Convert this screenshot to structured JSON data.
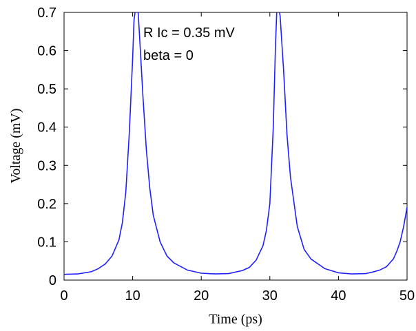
{
  "chart_data": {
    "type": "line",
    "title": "",
    "xlabel": "Time (ps)",
    "ylabel": "Voltage (mV)",
    "xlim": [
      0,
      50
    ],
    "ylim": [
      0,
      0.7
    ],
    "xticks": [
      0,
      10,
      20,
      30,
      40,
      50
    ],
    "yticks": [
      0,
      0.1,
      0.2,
      0.3,
      0.4,
      0.5,
      0.6,
      0.7
    ],
    "xtick_labels": [
      "0",
      "10",
      "20",
      "30",
      "40",
      "50"
    ],
    "ytick_labels": [
      "0",
      "0.1",
      "0.2",
      "0.3",
      "0.4",
      "0.5",
      "0.6",
      "0.7"
    ],
    "grid": false,
    "line_color": "#1f1fff",
    "annotations": [
      "R Ic = 0.35 mV",
      "beta = 0"
    ],
    "series": [
      {
        "x": [
          0,
          2,
          4,
          5,
          6,
          7,
          8,
          8.5,
          9,
          9.5,
          10,
          10.2,
          10.5,
          10.8,
          11,
          11.5,
          12,
          12.5,
          13,
          14,
          15,
          16,
          18,
          20,
          22,
          24,
          26,
          27,
          28,
          29,
          29.5,
          30,
          30.5,
          30.8,
          31,
          31.2,
          31.5,
          32,
          32.5,
          33,
          34,
          35,
          36,
          38,
          40,
          42,
          44,
          45,
          46,
          47,
          48,
          48.5,
          49,
          49.5,
          50
        ],
        "y": [
          0.015,
          0.016,
          0.022,
          0.03,
          0.042,
          0.063,
          0.105,
          0.15,
          0.23,
          0.38,
          0.58,
          0.68,
          0.72,
          0.7,
          0.64,
          0.48,
          0.34,
          0.24,
          0.17,
          0.1,
          0.063,
          0.045,
          0.026,
          0.018,
          0.016,
          0.017,
          0.025,
          0.033,
          0.052,
          0.09,
          0.13,
          0.2,
          0.4,
          0.6,
          0.7,
          0.72,
          0.69,
          0.55,
          0.38,
          0.27,
          0.14,
          0.08,
          0.055,
          0.03,
          0.019,
          0.016,
          0.017,
          0.021,
          0.026,
          0.035,
          0.055,
          0.075,
          0.1,
          0.14,
          0.19
        ]
      }
    ]
  }
}
